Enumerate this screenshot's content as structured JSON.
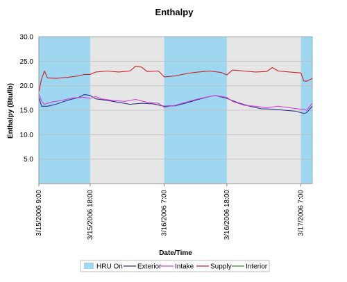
{
  "chart_data": {
    "type": "line",
    "title": "Enthalpy",
    "xlabel": "Date/Time",
    "ylabel": "Enthalpy (Btu/lb)",
    "ylim": [
      0,
      30
    ],
    "y_ticks": [
      "5.0",
      "10.0",
      "15.0",
      "20.0",
      "25.0",
      "30.0"
    ],
    "y_tick_values": [
      5,
      10,
      15,
      20,
      25,
      30
    ],
    "xlim": [
      "3/15/2006 9:00",
      "3/17/2006 11:00"
    ],
    "x_tick_labels": [
      "3/15/2006 9:00",
      "3/15/2006 18:00",
      "3/16/2006 7:00",
      "3/16/2006 18:00",
      "3/17/2006 7:00"
    ],
    "x_tick_values": [
      0,
      9,
      22,
      33,
      46
    ],
    "grid": "horizontal",
    "legend_placement": "bottom",
    "hru_on_periods": [
      [
        0,
        9
      ],
      [
        22,
        33
      ],
      [
        46,
        48
      ]
    ],
    "hru_off_color": "#e6e6e6",
    "hru_on_color": "#9fd6f0",
    "legend": [
      "HRU On",
      "Exterior",
      "Intake",
      "Supply",
      "Interior"
    ],
    "series": [
      {
        "name": "Exterior",
        "color": "#2b2f86",
        "points": [
          [
            0,
            17.5
          ],
          [
            0.5,
            15.8
          ],
          [
            1.5,
            15.8
          ],
          [
            3,
            16.2
          ],
          [
            5,
            17
          ],
          [
            7,
            17.6
          ],
          [
            8,
            18.2
          ],
          [
            9,
            18.0
          ],
          [
            10,
            17.3
          ],
          [
            12,
            17.0
          ],
          [
            14,
            16.6
          ],
          [
            16,
            16.2
          ],
          [
            18,
            16.4
          ],
          [
            20,
            16.3
          ],
          [
            22,
            15.8
          ],
          [
            24,
            15.9
          ],
          [
            26,
            16.5
          ],
          [
            28,
            17.2
          ],
          [
            30,
            17.8
          ],
          [
            31,
            18.0
          ],
          [
            33,
            17.4
          ],
          [
            35,
            16.5
          ],
          [
            37,
            15.8
          ],
          [
            39,
            15.3
          ],
          [
            41,
            15.2
          ],
          [
            43,
            15.0
          ],
          [
            45,
            14.8
          ],
          [
            46,
            14.5
          ],
          [
            46.5,
            14.3
          ],
          [
            47,
            14.5
          ],
          [
            48,
            15.8
          ]
        ]
      },
      {
        "name": "Intake",
        "color": "#d63fd6",
        "points": [
          [
            0,
            18.3
          ],
          [
            0.5,
            16.8
          ],
          [
            1,
            16.2
          ],
          [
            2,
            16.6
          ],
          [
            4,
            17
          ],
          [
            6,
            17.5
          ],
          [
            8,
            17.6
          ],
          [
            9,
            17.4
          ],
          [
            10,
            17.8
          ],
          [
            11,
            17.3
          ],
          [
            13,
            17.0
          ],
          [
            15,
            16.8
          ],
          [
            17,
            17.2
          ],
          [
            19,
            16.6
          ],
          [
            21,
            16.4
          ],
          [
            22,
            15.6
          ],
          [
            24,
            16.0
          ],
          [
            26,
            16.7
          ],
          [
            28,
            17.3
          ],
          [
            30,
            17.8
          ],
          [
            31,
            18.0
          ],
          [
            33,
            17.6
          ],
          [
            34,
            16.8
          ],
          [
            36,
            16.0
          ],
          [
            38,
            15.8
          ],
          [
            40,
            15.5
          ],
          [
            42,
            15.8
          ],
          [
            44,
            15.5
          ],
          [
            46,
            15.2
          ],
          [
            47,
            15.0
          ],
          [
            48,
            16.4
          ]
        ]
      },
      {
        "name": "Supply",
        "color": "#c8202a",
        "points": [
          [
            0,
            18.8
          ],
          [
            0.5,
            21.5
          ],
          [
            1,
            23.0
          ],
          [
            1.5,
            21.6
          ],
          [
            3,
            21.5
          ],
          [
            5,
            21.7
          ],
          [
            7,
            22.0
          ],
          [
            8,
            22.3
          ],
          [
            9,
            22.3
          ],
          [
            10,
            22.8
          ],
          [
            12,
            23.0
          ],
          [
            14,
            22.8
          ],
          [
            16,
            23.0
          ],
          [
            17,
            24.0
          ],
          [
            18,
            23.8
          ],
          [
            19,
            22.9
          ],
          [
            21,
            23.0
          ],
          [
            22,
            21.8
          ],
          [
            24,
            22.0
          ],
          [
            26,
            22.5
          ],
          [
            28,
            22.8
          ],
          [
            30,
            23.0
          ],
          [
            32,
            22.7
          ],
          [
            33,
            22.2
          ],
          [
            34,
            23.2
          ],
          [
            36,
            23.0
          ],
          [
            38,
            22.8
          ],
          [
            40,
            22.9
          ],
          [
            41,
            23.7
          ],
          [
            42,
            23.0
          ],
          [
            44,
            22.8
          ],
          [
            46,
            22.6
          ],
          [
            46.5,
            21.0
          ],
          [
            47,
            20.9
          ],
          [
            48,
            21.5
          ]
        ]
      },
      {
        "name": "Interior",
        "color": "#2e8b2e",
        "points": []
      }
    ]
  }
}
